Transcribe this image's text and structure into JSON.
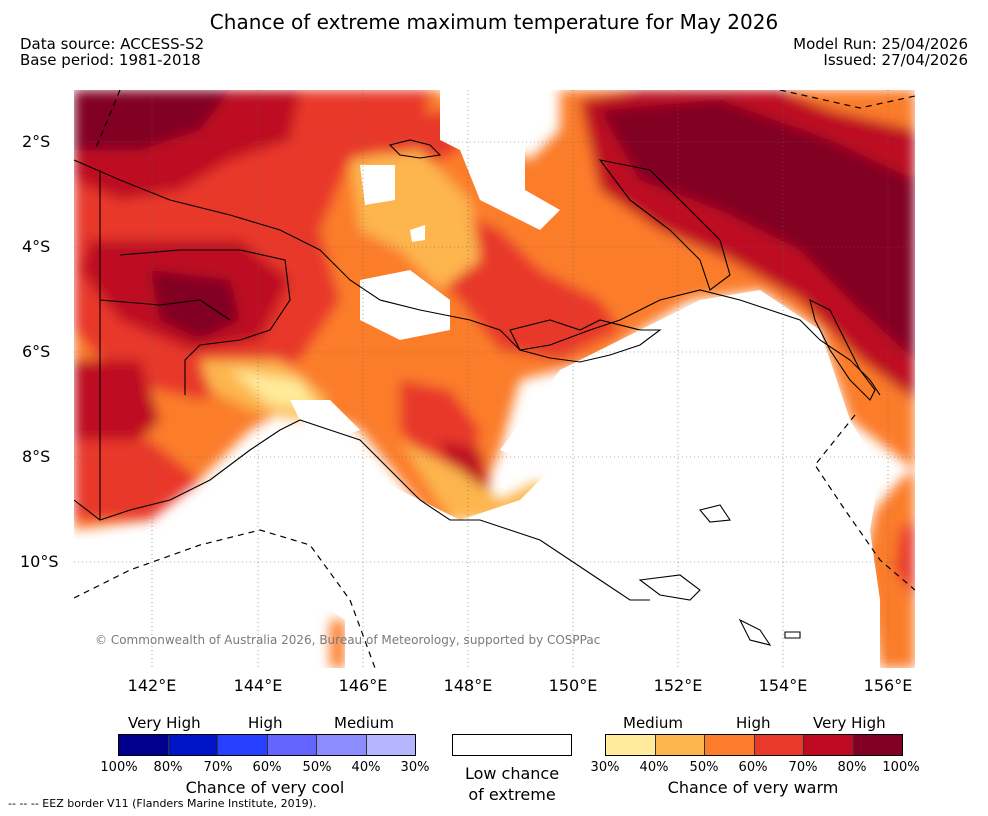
{
  "header": {
    "title": "Chance of extreme maximum temperature for May 2026",
    "data_source": "Data source: ACCESS-S2",
    "base_period": "Base period: 1981-2018",
    "model_run": "Model Run: 25/04/2026",
    "issued": "Issued: 27/04/2026"
  },
  "axes": {
    "lat_labels": [
      "2°S",
      "4°S",
      "6°S",
      "8°S",
      "10°S"
    ],
    "lon_labels": [
      "142°E",
      "144°E",
      "146°E",
      "148°E",
      "150°E",
      "152°E",
      "154°E",
      "156°E"
    ]
  },
  "copyright": "© Commonwealth of Australia 2026, Bureau of Meteorology, supported by COSPPac",
  "legend": {
    "cool": {
      "heads": [
        "Very High",
        "High",
        "Medium"
      ],
      "percents": [
        "100%",
        "80%",
        "70%",
        "60%",
        "50%",
        "40%",
        "30%"
      ],
      "title": "Chance of very cool",
      "colors": [
        "#00008c",
        "#0014c8",
        "#2840ff",
        "#6464ff",
        "#8c8cff",
        "#b4b4ff"
      ]
    },
    "low": {
      "line1": "Low chance",
      "line2": "of extreme"
    },
    "warm": {
      "heads": [
        "Medium",
        "High",
        "Very High"
      ],
      "percents": [
        "30%",
        "40%",
        "50%",
        "60%",
        "70%",
        "80%",
        "100%"
      ],
      "title": "Chance of very warm",
      "colors": [
        "#ffeb9a",
        "#fdb54e",
        "#fb7d2c",
        "#e8392a",
        "#be0a22",
        "#820023"
      ]
    }
  },
  "eez_note": "--  --  -- EEZ border V11 (Flanders Marine Institute, 2019)."
}
